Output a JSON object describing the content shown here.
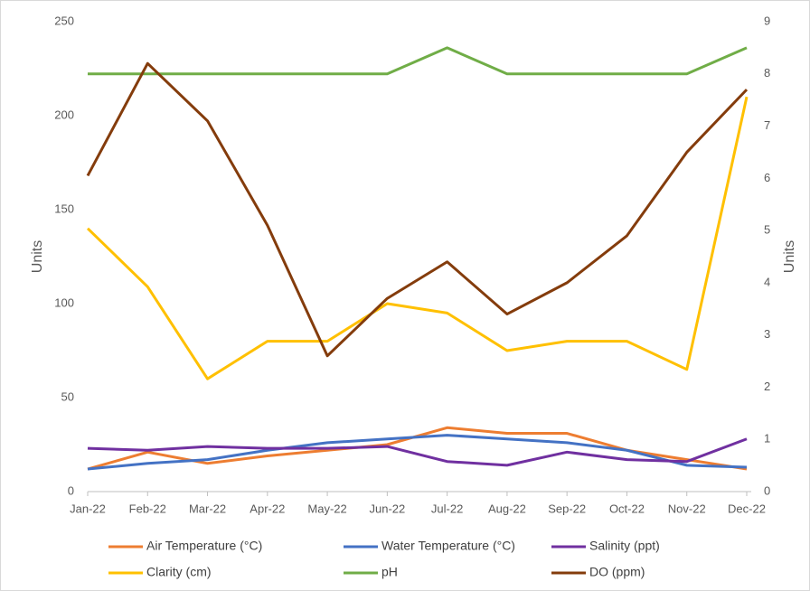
{
  "chart_data": {
    "type": "line",
    "categories": [
      "Jan-22",
      "Feb-22",
      "Mar-22",
      "Apr-22",
      "May-22",
      "Jun-22",
      "Jul-22",
      "Aug-22",
      "Sep-22",
      "Oct-22",
      "Nov-22",
      "Dec-22"
    ],
    "ylabel": "Units",
    "y2label": "Units",
    "ylim": [
      0,
      250
    ],
    "yticks": [
      0,
      50,
      100,
      150,
      200,
      250
    ],
    "y2lim": [
      0,
      9
    ],
    "y2ticks": [
      0,
      1,
      2,
      3,
      4,
      5,
      6,
      7,
      8,
      9
    ],
    "grid": false,
    "legend": "bottom",
    "series": [
      {
        "name": "Air Temperature (°C)",
        "color": "#ed7d31",
        "values": [
          12,
          21,
          15,
          19,
          22,
          25,
          34,
          31,
          31,
          22,
          17,
          12
        ]
      },
      {
        "name": "Water Temperature (°C)",
        "color": "#4472c4",
        "values": [
          12,
          15,
          17,
          22,
          26,
          28,
          30,
          28,
          26,
          22,
          14,
          13
        ]
      },
      {
        "name": "Salinity (ppt)",
        "color": "#7030a0",
        "values": [
          23,
          22,
          24,
          23,
          23,
          24,
          16,
          14,
          21,
          17,
          16,
          28
        ]
      },
      {
        "name": "Clarity (cm)",
        "color": "#ffc000",
        "values": [
          140,
          109,
          60,
          80,
          80,
          100,
          95,
          75,
          80,
          80,
          65,
          210
        ]
      },
      {
        "name": "pH",
        "color": "#70ad47",
        "axis": "y2",
        "values": [
          8,
          8,
          8,
          8,
          8,
          8,
          8.5,
          8,
          8,
          8,
          8,
          8.5
        ]
      },
      {
        "name": "DO (ppm)",
        "color": "#843c0c",
        "axis": "y2",
        "values": [
          6.05,
          8.2,
          7.1,
          5.1,
          2.6,
          3.7,
          4.4,
          3.4,
          4.0,
          4.9,
          6.5,
          7.7
        ]
      }
    ]
  }
}
